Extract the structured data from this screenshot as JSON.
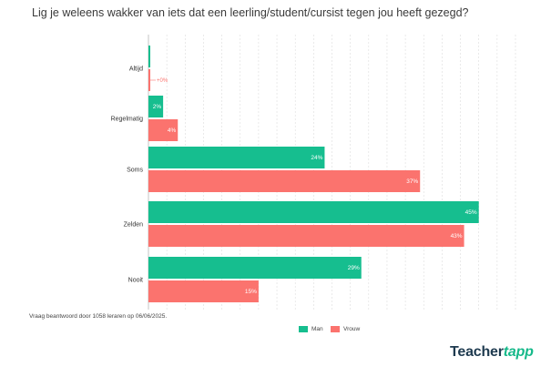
{
  "title": "Lig je weleens wakker van iets dat een leerling/student/cursist tegen jou heeft gezegd?",
  "footnote": "Vraag beantwoord door 1058 leraren op 06/06/2025.",
  "logo": {
    "part1": "Teacher",
    "part2": "tapp"
  },
  "colors": {
    "man": "#16be8f",
    "vrouw": "#fb736e",
    "grid": "#dddddd",
    "axis": "#b8b8b8"
  },
  "chart_data": {
    "type": "bar",
    "orientation": "horizontal",
    "categories": [
      "Altijd",
      "Regelmatig",
      "Soms",
      "Zelden",
      "Nooit"
    ],
    "series": [
      {
        "name": "Man",
        "values": [
          0,
          2,
          24,
          45,
          29
        ],
        "labels": [
          "",
          "2%",
          "24%",
          "45%",
          "29%"
        ]
      },
      {
        "name": "Vrouw",
        "values": [
          0,
          4,
          37,
          43,
          15
        ],
        "labels": [
          "+0%",
          "4%",
          "37%",
          "43%",
          "15%"
        ]
      }
    ],
    "xlim": [
      0,
      50
    ],
    "grid": true,
    "legend": "bottom-center"
  }
}
